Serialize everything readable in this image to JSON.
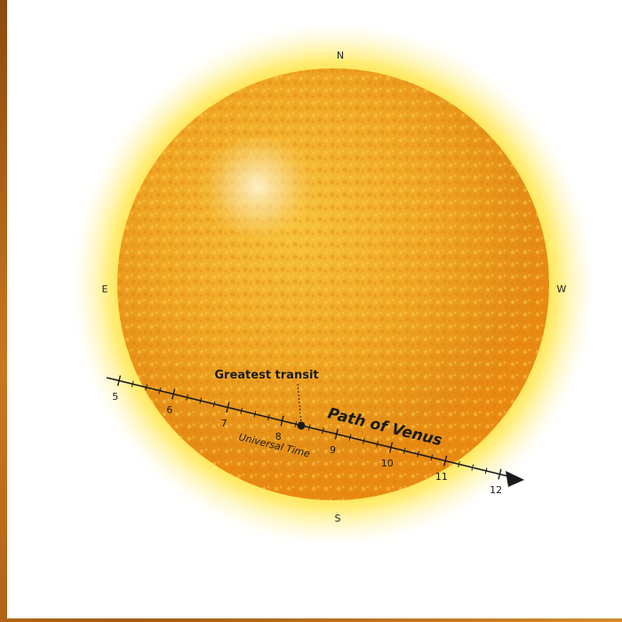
{
  "compass": {
    "north": "N",
    "south": "S",
    "east": "E",
    "west": "W"
  },
  "path_label": "Path of Venus",
  "time_axis_label": "Universal Time",
  "greatest_transit_label": "Greatest transit",
  "time_ticks": [
    "5",
    "6",
    "7",
    "8",
    "9",
    "10",
    "11",
    "12"
  ],
  "colors": {
    "sun_core": "#f2a81f",
    "sun_edge": "#e07f12",
    "glow": "#ffe21a",
    "ink": "#222222"
  }
}
